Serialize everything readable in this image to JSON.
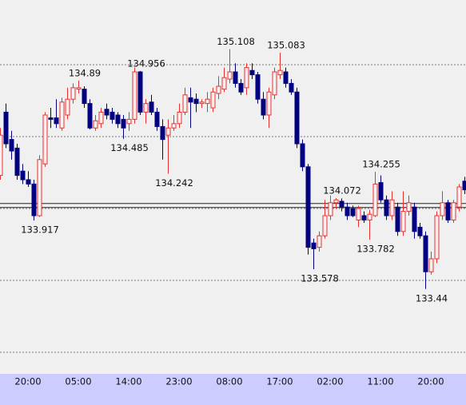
{
  "chart_data": {
    "type": "candlestick",
    "categories": [
      null,
      null,
      null,
      null,
      null,
      "20:00",
      null,
      null,
      null,
      null,
      null,
      null,
      null,
      null,
      "05:00",
      null,
      null,
      null,
      null,
      null,
      null,
      null,
      null,
      "14:00",
      null,
      null,
      null,
      null,
      null,
      null,
      null,
      null,
      "23:00",
      null,
      null,
      null,
      null,
      null,
      null,
      null,
      null,
      "08:00",
      null,
      null,
      null,
      null,
      null,
      null,
      null,
      null,
      "17:00",
      null,
      null,
      null,
      null,
      null,
      null,
      null,
      null,
      "02:00",
      null,
      null,
      null,
      null,
      null,
      null,
      null,
      null,
      "11:00",
      null,
      null,
      null,
      null,
      null,
      null,
      null,
      null,
      "20:00",
      null,
      null,
      null,
      null,
      null,
      null
    ],
    "open": [
      134.23,
      134.67,
      134.48,
      134.42,
      134.26,
      134.2,
      134.17,
      133.95,
      134.31,
      134.63,
      134.63,
      134.56,
      134.65,
      134.76,
      134.83,
      134.83,
      134.73,
      134.56,
      134.59,
      134.69,
      134.67,
      134.65,
      134.62,
      134.59,
      134.62,
      134.95,
      134.67,
      134.74,
      134.67,
      134.57,
      134.51,
      134.56,
      134.59,
      134.67,
      134.77,
      134.76,
      134.73,
      134.73,
      134.7,
      134.8,
      134.83,
      134.9,
      134.95,
      134.87,
      134.84,
      134.96,
      134.93,
      134.76,
      134.65,
      134.79,
      134.93,
      134.95,
      134.87,
      134.81,
      134.45,
      134.29,
      133.76,
      133.73,
      133.81,
      133.95,
      134.04,
      134.05,
      134.01,
      134.0,
      133.92,
      133.95,
      133.92,
      133.95,
      134.18,
      134.06,
      133.95,
      134.01,
      133.84,
      133.98,
      134.01,
      133.87,
      133.81,
      133.56,
      133.65,
      133.95,
      134.04,
      133.92,
      134.01,
      134.19
    ],
    "high": [
      134.56,
      134.73,
      134.54,
      134.45,
      134.31,
      134.26,
      134.2,
      134.37,
      134.67,
      134.7,
      134.76,
      134.77,
      134.84,
      134.87,
      134.89,
      134.85,
      134.76,
      134.65,
      134.7,
      134.73,
      134.7,
      134.67,
      134.65,
      134.67,
      134.98,
      134.956,
      134.76,
      134.79,
      134.7,
      134.62,
      134.62,
      134.65,
      134.73,
      134.84,
      134.84,
      134.8,
      134.76,
      134.81,
      134.84,
      134.92,
      134.98,
      135.108,
      135.01,
      134.9,
      135.01,
      135.01,
      134.95,
      134.81,
      134.84,
      134.98,
      135.083,
      134.98,
      134.9,
      134.84,
      134.48,
      134.31,
      133.79,
      133.84,
      134.06,
      134.09,
      134.072,
      134.07,
      134.04,
      134.02,
      134.02,
      133.98,
      133.99,
      134.255,
      134.23,
      134.09,
      134.12,
      134.04,
      134.12,
      134.09,
      134.04,
      133.9,
      133.84,
      133.7,
      133.98,
      134.12,
      134.06,
      134.06,
      134.17,
      134.22
    ],
    "low": [
      134.2,
      134.42,
      134.34,
      134.2,
      134.17,
      134.15,
      133.917,
      133.94,
      134.29,
      134.56,
      134.56,
      134.54,
      134.62,
      134.73,
      134.8,
      134.7,
      134.55,
      134.54,
      134.56,
      134.62,
      134.59,
      134.56,
      134.485,
      134.54,
      134.59,
      134.65,
      134.59,
      134.65,
      134.54,
      134.34,
      134.242,
      134.54,
      134.56,
      134.65,
      134.56,
      134.67,
      134.7,
      134.67,
      134.67,
      134.76,
      134.81,
      134.87,
      134.84,
      134.79,
      134.79,
      134.9,
      134.73,
      134.62,
      134.56,
      134.76,
      134.9,
      134.84,
      134.79,
      134.42,
      134.26,
      133.68,
      133.578,
      133.7,
      133.79,
      133.92,
      134.0,
      133.98,
      133.92,
      133.94,
      133.87,
      133.9,
      133.782,
      133.94,
      134.04,
      133.92,
      133.92,
      133.81,
      133.81,
      133.95,
      133.79,
      133.79,
      133.44,
      133.54,
      133.62,
      133.92,
      133.9,
      133.9,
      133.98,
      134.1
    ],
    "close": [
      134.51,
      134.45,
      134.4,
      134.23,
      134.2,
      134.17,
      133.95,
      134.34,
      134.65,
      134.62,
      134.59,
      134.74,
      134.76,
      134.84,
      134.84,
      134.73,
      134.56,
      134.61,
      134.67,
      134.65,
      134.62,
      134.59,
      134.56,
      134.62,
      134.95,
      134.67,
      134.73,
      134.67,
      134.57,
      134.48,
      134.56,
      134.59,
      134.67,
      134.79,
      134.74,
      134.73,
      134.74,
      134.76,
      134.81,
      134.85,
      134.91,
      134.95,
      134.87,
      134.81,
      134.98,
      134.93,
      134.76,
      134.65,
      134.81,
      134.95,
      134.96,
      134.87,
      134.81,
      134.45,
      134.29,
      133.73,
      133.72,
      133.81,
      133.95,
      134.04,
      134.06,
      134.01,
      133.95,
      133.95,
      134.0,
      133.92,
      133.96,
      134.17,
      134.06,
      133.95,
      134.06,
      133.84,
      133.98,
      134.04,
      133.84,
      133.81,
      133.56,
      133.65,
      133.95,
      134.04,
      133.92,
      134.04,
      134.15,
      134.13
    ],
    "up_color": "#e8312f",
    "down_color": "#000080",
    "price_lines": [
      134.035,
      134.007
    ],
    "annotations": [
      {
        "value": 133.917,
        "candle": 6,
        "side": "low"
      },
      {
        "value": 134.89,
        "candle": 14,
        "side": "high"
      },
      {
        "value": 134.485,
        "candle": 22,
        "side": "low"
      },
      {
        "value": 134.956,
        "candle": 25,
        "side": "high"
      },
      {
        "value": 134.242,
        "candle": 30,
        "side": "low"
      },
      {
        "value": 135.108,
        "candle": 41,
        "side": "high"
      },
      {
        "value": 135.083,
        "candle": 50,
        "side": "high"
      },
      {
        "value": 133.578,
        "candle": 56,
        "side": "low"
      },
      {
        "value": 134.072,
        "candle": 60,
        "side": "high"
      },
      {
        "value": 133.782,
        "candle": 66,
        "side": "low"
      },
      {
        "value": 134.255,
        "candle": 67,
        "side": "high"
      },
      {
        "value": 133.44,
        "candle": 76,
        "side": "low"
      }
    ],
    "ylim": [
      132.85,
      135.45
    ],
    "yticks": [
      133,
      133.5,
      134,
      134.5,
      135
    ],
    "grid": true
  }
}
